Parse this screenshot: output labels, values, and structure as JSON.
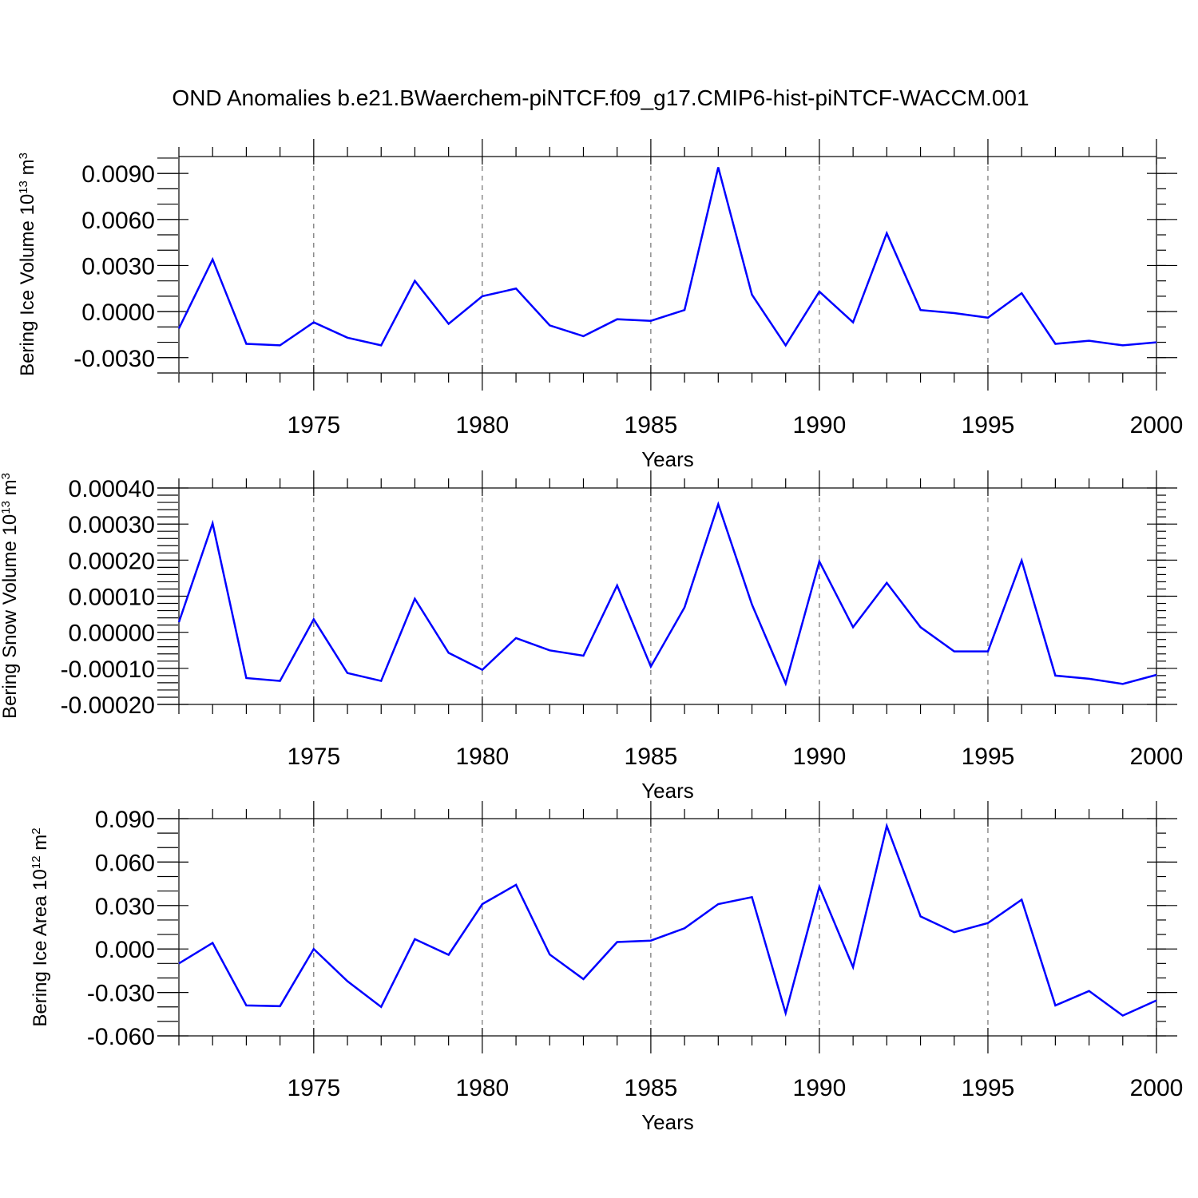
{
  "title": "OND Anomalies b.e21.BWaerchem-piNTCF.f09_g17.CMIP6-hist-piNTCF-WACCM.001",
  "line_color": "#0000ff",
  "chart_data": [
    {
      "type": "line",
      "title": "",
      "ylabel": "Bering Ice Volume 10",
      "ylabel_exp": "13",
      "ylabel_unit": " m",
      "ylabel_unit_exp": "3",
      "xlabel": "Years",
      "xlim": [
        1971,
        2000
      ],
      "ylim": [
        -0.004,
        0.0101
      ],
      "yticks": [
        -0.003,
        0.0,
        0.003,
        0.006,
        0.009
      ],
      "ytick_labels": [
        "-0.0030",
        "0.0000",
        "0.0030",
        "0.0060",
        "0.0090"
      ],
      "yminor_step": 0.001,
      "xticks": [
        1975,
        1980,
        1985,
        1990,
        1995,
        2000
      ],
      "xtick_labels": [
        "1975",
        "1980",
        "1985",
        "1990",
        "1995",
        "2000"
      ],
      "x": [
        1971,
        1972,
        1973,
        1974,
        1975,
        1976,
        1977,
        1978,
        1979,
        1980,
        1981,
        1982,
        1983,
        1984,
        1985,
        1986,
        1987,
        1988,
        1989,
        1990,
        1991,
        1992,
        1993,
        1994,
        1995,
        1996,
        1997,
        1998,
        1999,
        2000
      ],
      "series": [
        {
          "name": "Bering Ice Volume",
          "values": [
            -0.0011,
            0.0034,
            -0.0021,
            -0.0022,
            -0.0007,
            -0.0017,
            -0.0022,
            0.002,
            -0.0008,
            0.001,
            0.0015,
            -0.0009,
            -0.0016,
            -0.0005,
            -0.0006,
            0.0001,
            0.0094,
            0.0011,
            -0.0022,
            0.0013,
            -0.0007,
            0.0051,
            0.0001,
            -0.0001,
            -0.0004,
            0.0012,
            -0.0021,
            -0.0019,
            -0.0022,
            -0.002
          ]
        }
      ]
    },
    {
      "type": "line",
      "title": "",
      "ylabel": "Bering Snow Volume 10",
      "ylabel_exp": "13",
      "ylabel_unit": " m",
      "ylabel_unit_exp": "3",
      "xlabel": "Years",
      "xlim": [
        1971,
        2000
      ],
      "ylim": [
        -0.0002,
        0.0004
      ],
      "yticks": [
        -0.0002,
        -0.0001,
        0.0,
        0.0001,
        0.0002,
        0.0003,
        0.0004
      ],
      "ytick_labels": [
        "-0.00020",
        "-0.00010",
        "0.00000",
        "0.00010",
        "0.00020",
        "0.00030",
        "0.00040"
      ],
      "yminor_step": 2e-05,
      "xticks": [
        1975,
        1980,
        1985,
        1990,
        1995,
        2000
      ],
      "xtick_labels": [
        "1975",
        "1980",
        "1985",
        "1990",
        "1995",
        "2000"
      ],
      "x": [
        1971,
        1972,
        1973,
        1974,
        1975,
        1976,
        1977,
        1978,
        1979,
        1980,
        1981,
        1982,
        1983,
        1984,
        1985,
        1986,
        1987,
        1988,
        1989,
        1990,
        1991,
        1992,
        1993,
        1994,
        1995,
        1996,
        1997,
        1998,
        1999,
        2000
      ],
      "series": [
        {
          "name": "Bering Snow Volume",
          "values": [
            2.8e-05,
            0.000302,
            -0.000127,
            -0.000135,
            3.6e-05,
            -0.000113,
            -0.000135,
            9.3e-05,
            -5.7e-05,
            -0.000104,
            -1.6e-05,
            -5e-05,
            -6.5e-05,
            0.00013,
            -9.5e-05,
            6.9e-05,
            0.000355,
            7.7e-05,
            -0.000142,
            0.000196,
            1.4e-05,
            0.000137,
            1.4e-05,
            -5.3e-05,
            -5.3e-05,
            0.000199,
            -0.00012,
            -0.000129,
            -0.000143,
            -0.000118
          ]
        }
      ]
    },
    {
      "type": "line",
      "title": "",
      "ylabel": "Bering Ice Area 10",
      "ylabel_exp": "12",
      "ylabel_unit": " m",
      "ylabel_unit_exp": "2",
      "xlabel": "Years",
      "xlim": [
        1971,
        2000
      ],
      "ylim": [
        -0.06,
        0.09
      ],
      "yticks": [
        -0.06,
        -0.03,
        0.0,
        0.03,
        0.06,
        0.09
      ],
      "ytick_labels": [
        "-0.060",
        "-0.030",
        "0.000",
        "0.030",
        "0.060",
        "0.090"
      ],
      "yminor_step": 0.01,
      "xticks": [
        1975,
        1980,
        1985,
        1990,
        1995,
        2000
      ],
      "xtick_labels": [
        "1975",
        "1980",
        "1985",
        "1990",
        "1995",
        "2000"
      ],
      "x": [
        1971,
        1972,
        1973,
        1974,
        1975,
        1976,
        1977,
        1978,
        1979,
        1980,
        1981,
        1982,
        1983,
        1984,
        1985,
        1986,
        1987,
        1988,
        1989,
        1990,
        1991,
        1992,
        1993,
        1994,
        1995,
        1996,
        1997,
        1998,
        1999,
        2000
      ],
      "series": [
        {
          "name": "Bering Ice Area",
          "values": [
            -0.01,
            0.0042,
            -0.039,
            -0.0395,
            0.0,
            -0.0222,
            -0.04,
            0.0068,
            -0.004,
            0.031,
            0.0443,
            -0.0038,
            -0.0208,
            0.0048,
            0.0058,
            0.0143,
            0.031,
            0.0358,
            -0.0443,
            0.043,
            -0.0126,
            0.0849,
            0.0225,
            0.0116,
            0.0179,
            0.034,
            -0.039,
            -0.029,
            -0.046,
            -0.0355
          ]
        }
      ]
    }
  ]
}
